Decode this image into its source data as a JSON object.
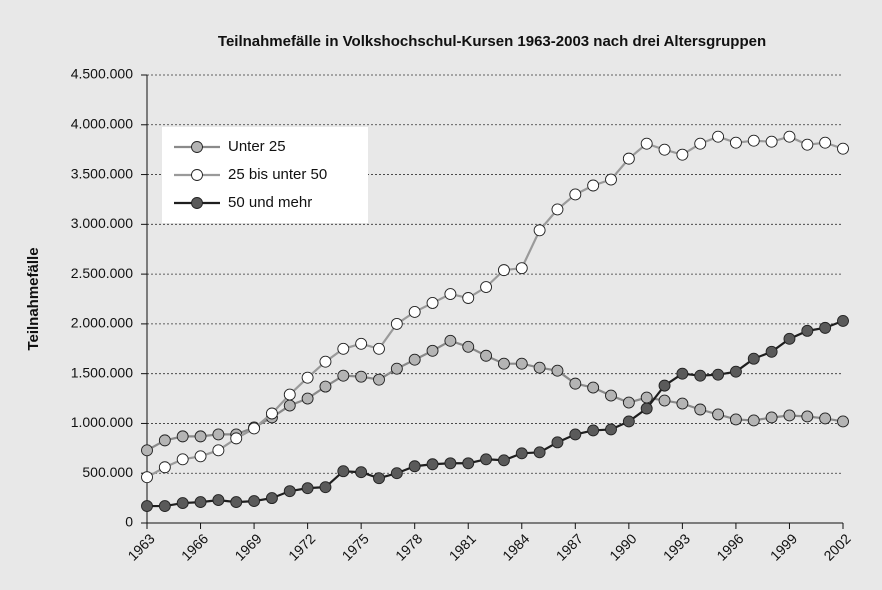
{
  "chart_data": {
    "type": "line",
    "title": "Teilnahmefälle in Volkshochschul-Kursen 1963-2003 nach drei Altersgruppen",
    "y_label": "Teilnahmefälle",
    "x": [
      1963,
      1964,
      1965,
      1966,
      1967,
      1968,
      1969,
      1970,
      1971,
      1972,
      1973,
      1974,
      1975,
      1976,
      1977,
      1978,
      1979,
      1980,
      1981,
      1982,
      1983,
      1984,
      1985,
      1986,
      1987,
      1988,
      1989,
      1990,
      1991,
      1992,
      1993,
      1994,
      1995,
      1996,
      1997,
      1998,
      1999,
      2000,
      2001,
      2002
    ],
    "xlim": [
      1963,
      2002
    ],
    "xticks": [
      1963,
      1966,
      1969,
      1972,
      1975,
      1978,
      1981,
      1984,
      1987,
      1990,
      1993,
      1996,
      1999,
      2002
    ],
    "ylim": [
      0,
      4500000
    ],
    "yticks": [
      0,
      {
        "value": 500000,
        "label": "500.000"
      },
      {
        "value": 1000000,
        "label": "1.000.000"
      },
      {
        "value": 1500000,
        "label": "1.500.000"
      },
      {
        "value": 2000000,
        "label": "2.000.000"
      },
      {
        "value": 2500000,
        "label": "2.500.000"
      },
      {
        "value": 3000000,
        "label": "3.000.000"
      },
      {
        "value": 3500000,
        "label": "3.500.000"
      },
      {
        "value": 4000000,
        "label": "4.000.000"
      },
      {
        "value": 4500000,
        "label": "4.500.000"
      }
    ],
    "grid": true,
    "legend": "upper left",
    "series": [
      {
        "name": "Unter 25",
        "color": "#8a8a8a",
        "marker_fill": "#b4b4b4",
        "values": [
          730000,
          830000,
          870000,
          870000,
          890000,
          890000,
          960000,
          1060000,
          1180000,
          1250000,
          1370000,
          1480000,
          1470000,
          1440000,
          1550000,
          1640000,
          1730000,
          1830000,
          1770000,
          1680000,
          1600000,
          1600000,
          1560000,
          1530000,
          1400000,
          1360000,
          1280000,
          1210000,
          1260000,
          1230000,
          1200000,
          1140000,
          1090000,
          1040000,
          1030000,
          1060000,
          1080000,
          1070000,
          1050000,
          1020000
        ]
      },
      {
        "name": "25 bis unter 50",
        "color": "#9a9a9a",
        "marker_fill": "#ffffff",
        "values": [
          460000,
          560000,
          640000,
          670000,
          730000,
          850000,
          950000,
          1100000,
          1290000,
          1460000,
          1620000,
          1750000,
          1800000,
          1750000,
          2000000,
          2120000,
          2210000,
          2300000,
          2260000,
          2370000,
          2540000,
          2560000,
          2940000,
          3150000,
          3300000,
          3390000,
          3450000,
          3660000,
          3810000,
          3750000,
          3700000,
          3810000,
          3880000,
          3820000,
          3840000,
          3830000,
          3880000,
          3800000,
          3820000,
          3760000
        ]
      },
      {
        "name": "50 und mehr",
        "color": "#1e1e1e",
        "marker_fill": "#5a5a5a",
        "values": [
          170000,
          170000,
          200000,
          210000,
          230000,
          210000,
          220000,
          250000,
          320000,
          350000,
          360000,
          520000,
          510000,
          450000,
          500000,
          570000,
          590000,
          600000,
          600000,
          640000,
          630000,
          700000,
          710000,
          810000,
          890000,
          930000,
          940000,
          1020000,
          1150000,
          1380000,
          1500000,
          1480000,
          1490000,
          1520000,
          1650000,
          1720000,
          1850000,
          1930000,
          1960000,
          2030000
        ]
      }
    ]
  }
}
